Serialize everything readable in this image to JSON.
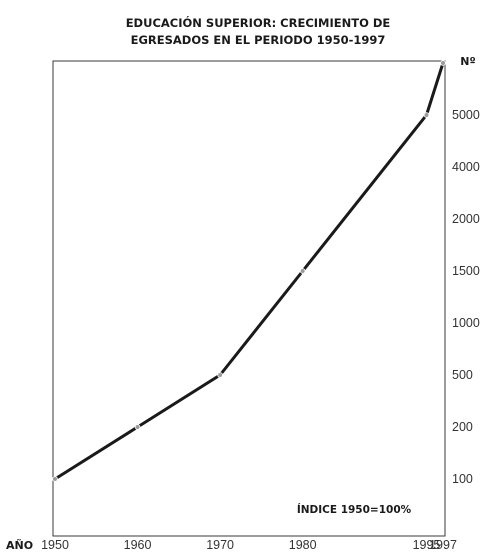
{
  "chart_data": {
    "type": "line",
    "title": "EDUCACIÓN SUPERIOR: CRECIMIENTO DE EGRESADOS EN EL PERIODO 1950-1997",
    "title_lines": [
      "EDUCACIÓN SUPERIOR: CRECIMIENTO DE",
      "EGRESADOS EN EL PERIODO 1950-1997"
    ],
    "xlabel": "AÑO",
    "ylabel": "Nº",
    "x": [
      "1950",
      "1960",
      "1970",
      "1980",
      "1995",
      "1997"
    ],
    "y_ticks": [
      "5000",
      "4000",
      "2000",
      "1500",
      "1000",
      "500",
      "200",
      "100"
    ],
    "series": [
      {
        "values": [
          100,
          200,
          500,
          1500,
          5000,
          6000
        ]
      }
    ],
    "annotation": "ÍNDICE 1950=100%",
    "line_color": "#1a1a1a",
    "marker_color": "#9a9a9a",
    "grid": false,
    "legend": "none"
  }
}
